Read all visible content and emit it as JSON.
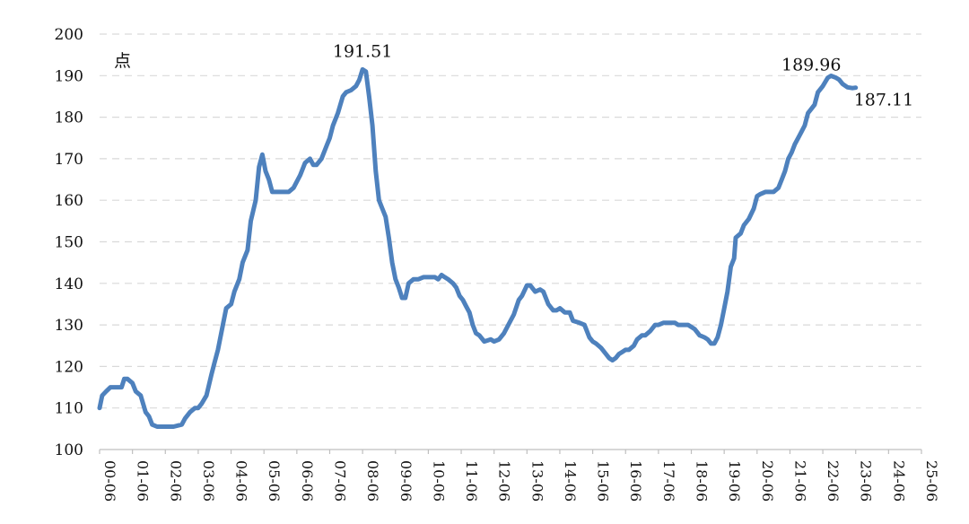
{
  "chart_data": {
    "type": "line",
    "unit_label": "点",
    "ylim": [
      100,
      200
    ],
    "y_ticks": [
      "100",
      "110",
      "120",
      "130",
      "140",
      "150",
      "160",
      "170",
      "180",
      "190",
      "200"
    ],
    "x_ticks": [
      "00-06",
      "01-06",
      "02-06",
      "03-06",
      "04-06",
      "05-06",
      "06-06",
      "07-06",
      "08-06",
      "09-06",
      "10-06",
      "11-06",
      "12-06",
      "13-06",
      "14-06",
      "15-06",
      "16-06",
      "17-06",
      "18-06",
      "19-06",
      "20-06",
      "21-06",
      "22-06",
      "23-06",
      "24-06",
      "25-06"
    ],
    "grid": "horizontal dashed",
    "series": [
      {
        "color": "#4e81bd",
        "points": [
          [
            0.0,
            110
          ],
          [
            0.08,
            113
          ],
          [
            0.2,
            114
          ],
          [
            0.33,
            115
          ],
          [
            0.5,
            115
          ],
          [
            0.67,
            115
          ],
          [
            0.75,
            117
          ],
          [
            0.85,
            117
          ],
          [
            1.0,
            116
          ],
          [
            1.1,
            114
          ],
          [
            1.25,
            113
          ],
          [
            1.4,
            109
          ],
          [
            1.5,
            108
          ],
          [
            1.6,
            106
          ],
          [
            1.75,
            105.5
          ],
          [
            2.0,
            105.5
          ],
          [
            2.25,
            105.5
          ],
          [
            2.5,
            106
          ],
          [
            2.6,
            107.5
          ],
          [
            2.75,
            109
          ],
          [
            2.9,
            110
          ],
          [
            3.0,
            110
          ],
          [
            3.1,
            111
          ],
          [
            3.25,
            113
          ],
          [
            3.4,
            118
          ],
          [
            3.5,
            121
          ],
          [
            3.6,
            124
          ],
          [
            3.75,
            130
          ],
          [
            3.85,
            134
          ],
          [
            4.0,
            135
          ],
          [
            4.1,
            138
          ],
          [
            4.25,
            141
          ],
          [
            4.35,
            145
          ],
          [
            4.5,
            148
          ],
          [
            4.6,
            155
          ],
          [
            4.75,
            160
          ],
          [
            4.85,
            168
          ],
          [
            4.95,
            171
          ],
          [
            5.05,
            167
          ],
          [
            5.15,
            165
          ],
          [
            5.25,
            162
          ],
          [
            5.5,
            162
          ],
          [
            5.75,
            162
          ],
          [
            5.9,
            163
          ],
          [
            6.1,
            166
          ],
          [
            6.25,
            169
          ],
          [
            6.4,
            170
          ],
          [
            6.5,
            168.5
          ],
          [
            6.6,
            168.5
          ],
          [
            6.75,
            170
          ],
          [
            6.9,
            173
          ],
          [
            7.0,
            175
          ],
          [
            7.1,
            178
          ],
          [
            7.25,
            181
          ],
          [
            7.4,
            185
          ],
          [
            7.5,
            186
          ],
          [
            7.65,
            186.5
          ],
          [
            7.8,
            187.5
          ],
          [
            7.9,
            189
          ],
          [
            8.0,
            191.5
          ],
          [
            8.1,
            191
          ],
          [
            8.2,
            185
          ],
          [
            8.3,
            178
          ],
          [
            8.4,
            167
          ],
          [
            8.5,
            160
          ],
          [
            8.6,
            158
          ],
          [
            8.7,
            156
          ],
          [
            8.8,
            151
          ],
          [
            8.9,
            145
          ],
          [
            9.0,
            141
          ],
          [
            9.1,
            139
          ],
          [
            9.2,
            136.5
          ],
          [
            9.3,
            136.5
          ],
          [
            9.4,
            140
          ],
          [
            9.55,
            141
          ],
          [
            9.7,
            141
          ],
          [
            9.85,
            141.5
          ],
          [
            10.0,
            141.5
          ],
          [
            10.2,
            141.5
          ],
          [
            10.3,
            141
          ],
          [
            10.4,
            142
          ],
          [
            10.5,
            141.5
          ],
          [
            10.6,
            141
          ],
          [
            10.75,
            140
          ],
          [
            10.85,
            139
          ],
          [
            10.95,
            137
          ],
          [
            11.05,
            136
          ],
          [
            11.15,
            134.5
          ],
          [
            11.25,
            133
          ],
          [
            11.35,
            130
          ],
          [
            11.45,
            128
          ],
          [
            11.55,
            127.5
          ],
          [
            11.7,
            126
          ],
          [
            11.9,
            126.5
          ],
          [
            12.0,
            126
          ],
          [
            12.15,
            126.5
          ],
          [
            12.3,
            128
          ],
          [
            12.5,
            131
          ],
          [
            12.6,
            132.5
          ],
          [
            12.75,
            136
          ],
          [
            12.85,
            137
          ],
          [
            13.0,
            139.5
          ],
          [
            13.1,
            139.5
          ],
          [
            13.25,
            138
          ],
          [
            13.4,
            138.5
          ],
          [
            13.5,
            138
          ],
          [
            13.65,
            135
          ],
          [
            13.8,
            133.5
          ],
          [
            13.9,
            133.5
          ],
          [
            14.0,
            134
          ],
          [
            14.15,
            133
          ],
          [
            14.3,
            133
          ],
          [
            14.4,
            131
          ],
          [
            14.6,
            130.5
          ],
          [
            14.75,
            130
          ],
          [
            14.9,
            127
          ],
          [
            15.0,
            126
          ],
          [
            15.1,
            125.5
          ],
          [
            15.25,
            124.5
          ],
          [
            15.4,
            123
          ],
          [
            15.5,
            122
          ],
          [
            15.6,
            121.5
          ],
          [
            15.7,
            122
          ],
          [
            15.8,
            123
          ],
          [
            15.9,
            123.5
          ],
          [
            16.0,
            124
          ],
          [
            16.1,
            124
          ],
          [
            16.25,
            125
          ],
          [
            16.35,
            126.5
          ],
          [
            16.5,
            127.5
          ],
          [
            16.6,
            127.5
          ],
          [
            16.75,
            128.5
          ],
          [
            16.9,
            130
          ],
          [
            17.0,
            130
          ],
          [
            17.15,
            130.5
          ],
          [
            17.3,
            130.5
          ],
          [
            17.5,
            130.5
          ],
          [
            17.6,
            130
          ],
          [
            17.75,
            130
          ],
          [
            17.9,
            130
          ],
          [
            18.0,
            129.5
          ],
          [
            18.1,
            129
          ],
          [
            18.25,
            127.5
          ],
          [
            18.4,
            127
          ],
          [
            18.5,
            126.5
          ],
          [
            18.6,
            125.5
          ],
          [
            18.7,
            125.5
          ],
          [
            18.8,
            127
          ],
          [
            18.9,
            130
          ],
          [
            19.0,
            134
          ],
          [
            19.1,
            138
          ],
          [
            19.2,
            144
          ],
          [
            19.3,
            146
          ],
          [
            19.35,
            151
          ],
          [
            19.5,
            152
          ],
          [
            19.6,
            154
          ],
          [
            19.75,
            155.5
          ],
          [
            19.9,
            158
          ],
          [
            20.0,
            161
          ],
          [
            20.1,
            161.5
          ],
          [
            20.25,
            162
          ],
          [
            20.4,
            162
          ],
          [
            20.5,
            162
          ],
          [
            20.65,
            163
          ],
          [
            20.75,
            165
          ],
          [
            20.85,
            167
          ],
          [
            20.95,
            170
          ],
          [
            21.05,
            171.5
          ],
          [
            21.15,
            173.5
          ],
          [
            21.25,
            175
          ],
          [
            21.35,
            176.5
          ],
          [
            21.45,
            178
          ],
          [
            21.55,
            181
          ],
          [
            21.65,
            182
          ],
          [
            21.75,
            183
          ],
          [
            21.85,
            186
          ],
          [
            22.0,
            187.5
          ],
          [
            22.15,
            189.5
          ],
          [
            22.25,
            189.96
          ],
          [
            22.4,
            189.5
          ],
          [
            22.5,
            189
          ],
          [
            22.6,
            188
          ],
          [
            22.75,
            187.2
          ],
          [
            22.9,
            187
          ],
          [
            23.0,
            187.11
          ]
        ]
      }
    ],
    "annotations": [
      {
        "text": "191.51",
        "x": 8.0,
        "y": 191.51
      },
      {
        "text": "189.96",
        "x": 22.25,
        "y": 189.96
      },
      {
        "text": "187.11",
        "x": 23.0,
        "y": 187.11
      }
    ]
  }
}
